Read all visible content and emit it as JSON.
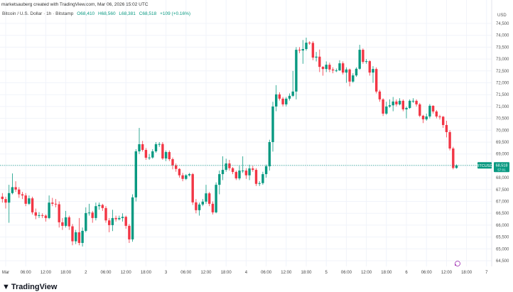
{
  "header": {
    "attribution": "marketsauberg created with TradingView.com, Mar 06, 2026 15:02 UTC",
    "symbol_desc": "Bitcoin / U.S. Dollar · 1h · Bitstamp",
    "open": "O68,410",
    "high": "H68,560",
    "low": "L68,381",
    "close": "C68,518",
    "change": "+109 (+0.16%)"
  },
  "price_tag": {
    "symbol": "BTCUSD",
    "price": "68,518",
    "countdown": "57:01"
  },
  "branding": {
    "logo_mark": "17",
    "name": "TradingView"
  },
  "colors": {
    "up": "#089981",
    "down": "#f23645",
    "grid": "#f0f3fa",
    "tag": "#089981",
    "replay_icon": "#9c27b0"
  },
  "chart_data": {
    "type": "candlestick",
    "interval": "1h",
    "first_candle": "2026-02-28 23:00",
    "y_unit": "USD",
    "ylim": [
      64250,
      74900
    ],
    "grid": true,
    "y_ticks": [
      "74,500",
      "74,000",
      "73,500",
      "73,000",
      "72,500",
      "72,000",
      "71,500",
      "71,000",
      "70,500",
      "70,000",
      "69,500",
      "69,000",
      "68,000",
      "67,500",
      "67,000",
      "66,500",
      "66,000",
      "65,500",
      "65,000",
      "64,500"
    ],
    "y_tick_values": [
      74500,
      74000,
      73500,
      73000,
      72500,
      72000,
      71500,
      71000,
      70500,
      70000,
      69500,
      69000,
      68000,
      67500,
      67000,
      66500,
      66000,
      65500,
      65000,
      64500
    ],
    "x_ticks": [
      "Mar",
      "06:00",
      "12:00",
      "18:00",
      "2",
      "06:00",
      "12:00",
      "18:00",
      "3",
      "06:00",
      "12:00",
      "18:00",
      "4",
      "06:00",
      "12:00",
      "18:00",
      "5",
      "06:00",
      "12:00",
      "18:00",
      "6",
      "06:00",
      "12:00",
      "18:00",
      "7"
    ],
    "last_price": 68518,
    "ohlc": [
      [
        67200,
        67350,
        66950,
        67100
      ],
      [
        67100,
        67200,
        66700,
        66950
      ],
      [
        66950,
        67700,
        66100,
        67350
      ],
      [
        67350,
        68180,
        67300,
        67600
      ],
      [
        67600,
        67850,
        67400,
        67500
      ],
      [
        67500,
        67600,
        67150,
        67300
      ],
      [
        67300,
        67400,
        67100,
        67250
      ],
      [
        67250,
        67350,
        66800,
        66900
      ],
      [
        66900,
        67250,
        66850,
        67130
      ],
      [
        67130,
        67200,
        66450,
        66540
      ],
      [
        66540,
        66700,
        66250,
        66400
      ],
      [
        66400,
        66550,
        66300,
        66420
      ],
      [
        66420,
        66500,
        66300,
        66400
      ],
      [
        66400,
        66450,
        66150,
        66300
      ],
      [
        66300,
        67250,
        66250,
        66950
      ],
      [
        66950,
        67150,
        66800,
        66900
      ],
      [
        66900,
        67100,
        66750,
        66880
      ],
      [
        66880,
        67000,
        65900,
        66120
      ],
      [
        66120,
        66300,
        65800,
        65970
      ],
      [
        65970,
        66600,
        65900,
        66330
      ],
      [
        66330,
        66400,
        65800,
        65950
      ],
      [
        65950,
        66050,
        65150,
        65320
      ],
      [
        65320,
        65800,
        65200,
        65700
      ],
      [
        65700,
        66300,
        65150,
        65250
      ],
      [
        65250,
        65900,
        65100,
        65760
      ],
      [
        65760,
        66750,
        65700,
        66510
      ],
      [
        66510,
        66900,
        66400,
        66530
      ],
      [
        66530,
        66600,
        66100,
        66300
      ],
      [
        66300,
        66950,
        66200,
        66800
      ],
      [
        66800,
        66950,
        66650,
        66850
      ],
      [
        66850,
        66900,
        66600,
        66720
      ],
      [
        66720,
        66800,
        66100,
        66200
      ],
      [
        66200,
        66300,
        65700,
        66000
      ],
      [
        66000,
        66650,
        65750,
        66300
      ],
      [
        66300,
        66400,
        66150,
        66250
      ],
      [
        66250,
        66400,
        66200,
        66300
      ],
      [
        66300,
        66500,
        66150,
        66350
      ],
      [
        66350,
        66400,
        65850,
        65970
      ],
      [
        65970,
        66050,
        65250,
        65400
      ],
      [
        65400,
        67300,
        65300,
        67170
      ],
      [
        67170,
        69200,
        67000,
        69110
      ],
      [
        69110,
        70100,
        69000,
        69410
      ],
      [
        69410,
        69550,
        69100,
        69170
      ],
      [
        69170,
        69250,
        68750,
        68840
      ],
      [
        68840,
        69000,
        68750,
        68850
      ],
      [
        68850,
        69200,
        68800,
        69110
      ],
      [
        69110,
        69500,
        69050,
        69410
      ],
      [
        69410,
        69500,
        69300,
        69420
      ],
      [
        69420,
        69500,
        68750,
        68810
      ],
      [
        68810,
        69150,
        68700,
        69080
      ],
      [
        69080,
        69150,
        68700,
        68780
      ],
      [
        68780,
        68850,
        68350,
        68520
      ],
      [
        68520,
        68600,
        68250,
        68370
      ],
      [
        68370,
        68400,
        68000,
        68100
      ],
      [
        68100,
        68200,
        67850,
        67950
      ],
      [
        67950,
        68150,
        67900,
        68100
      ],
      [
        68100,
        68200,
        68050,
        68150
      ],
      [
        68150,
        68200,
        66850,
        66960
      ],
      [
        66960,
        67100,
        66500,
        66630
      ],
      [
        66630,
        66950,
        66400,
        66870
      ],
      [
        66870,
        67100,
        66800,
        66990
      ],
      [
        66990,
        67700,
        66900,
        67340
      ],
      [
        67340,
        67400,
        66800,
        66900
      ],
      [
        66900,
        67000,
        66450,
        66540
      ],
      [
        66540,
        67800,
        66500,
        67700
      ],
      [
        67700,
        68300,
        67300,
        68150
      ],
      [
        68150,
        68900,
        67900,
        68330
      ],
      [
        68330,
        68800,
        68250,
        68600
      ],
      [
        68600,
        68750,
        68300,
        68400
      ],
      [
        68400,
        68450,
        68150,
        68240
      ],
      [
        68240,
        68300,
        67900,
        67970
      ],
      [
        67970,
        68500,
        67900,
        68300
      ],
      [
        68300,
        68900,
        68200,
        68300
      ],
      [
        68300,
        68400,
        67950,
        68100
      ],
      [
        68100,
        68550,
        67900,
        68390
      ],
      [
        68390,
        68500,
        68250,
        68330
      ],
      [
        68330,
        68400,
        67650,
        67740
      ],
      [
        67740,
        67850,
        67650,
        67770
      ],
      [
        67770,
        68250,
        67700,
        68150
      ],
      [
        68150,
        68550,
        68000,
        68480
      ],
      [
        68480,
        69600,
        68300,
        69500
      ],
      [
        69500,
        71200,
        69100,
        71000
      ],
      [
        71000,
        71900,
        70800,
        71510
      ],
      [
        71510,
        71600,
        71250,
        71330
      ],
      [
        71330,
        71400,
        71000,
        71090
      ],
      [
        71090,
        71400,
        71000,
        71330
      ],
      [
        71330,
        71550,
        71250,
        71450
      ],
      [
        71450,
        72500,
        71400,
        71630
      ],
      [
        71630,
        73500,
        71300,
        73390
      ],
      [
        73390,
        73500,
        73250,
        73360
      ],
      [
        73360,
        73800,
        72800,
        73420
      ],
      [
        73420,
        73900,
        73350,
        73690
      ],
      [
        73690,
        73750,
        73600,
        73680
      ],
      [
        73680,
        73750,
        72950,
        73060
      ],
      [
        73060,
        73300,
        72900,
        73100
      ],
      [
        73100,
        73400,
        72450,
        72670
      ],
      [
        72670,
        72700,
        72300,
        72580
      ],
      [
        72580,
        72900,
        72450,
        72760
      ],
      [
        72760,
        72850,
        72450,
        72560
      ],
      [
        72560,
        72650,
        72400,
        72520
      ],
      [
        72520,
        72600,
        72450,
        72520
      ],
      [
        72520,
        72950,
        72500,
        72820
      ],
      [
        72820,
        72900,
        72350,
        72430
      ],
      [
        72430,
        72650,
        72000,
        72560
      ],
      [
        72560,
        72600,
        71850,
        72050
      ],
      [
        72050,
        72400,
        72000,
        72310
      ],
      [
        72310,
        72650,
        72250,
        72590
      ],
      [
        72590,
        73600,
        72550,
        73390
      ],
      [
        73390,
        73450,
        72800,
        72880
      ],
      [
        72880,
        73000,
        72800,
        72910
      ],
      [
        72910,
        72950,
        72300,
        72430
      ],
      [
        72430,
        72700,
        72000,
        72580
      ],
      [
        72580,
        72650,
        71550,
        71630
      ],
      [
        71630,
        71700,
        71200,
        71300
      ],
      [
        71300,
        71350,
        70600,
        70700
      ],
      [
        70700,
        71200,
        70650,
        71000
      ],
      [
        71000,
        71300,
        70950,
        71050
      ],
      [
        71050,
        71400,
        70800,
        71210
      ],
      [
        71210,
        71300,
        71000,
        71090
      ],
      [
        71090,
        71350,
        71050,
        71240
      ],
      [
        71240,
        71300,
        70800,
        70880
      ],
      [
        70880,
        71000,
        70500,
        70940
      ],
      [
        70940,
        71300,
        70900,
        71240
      ],
      [
        71240,
        71350,
        71150,
        71240
      ],
      [
        71240,
        71300,
        71000,
        71090
      ],
      [
        71090,
        71150,
        70550,
        70610
      ],
      [
        70610,
        70650,
        70300,
        70460
      ],
      [
        70460,
        70700,
        70400,
        70580
      ],
      [
        70580,
        71100,
        70500,
        71030
      ],
      [
        71030,
        71050,
        70700,
        70790
      ],
      [
        70790,
        70850,
        70500,
        70580
      ],
      [
        70580,
        70650,
        70450,
        70570
      ],
      [
        70570,
        70600,
        70100,
        70220
      ],
      [
        70220,
        70400,
        69700,
        69920
      ],
      [
        69920,
        70000,
        69150,
        69230
      ],
      [
        69230,
        69300,
        68350,
        68410
      ],
      [
        68410,
        68560,
        68381,
        68518
      ]
    ]
  }
}
